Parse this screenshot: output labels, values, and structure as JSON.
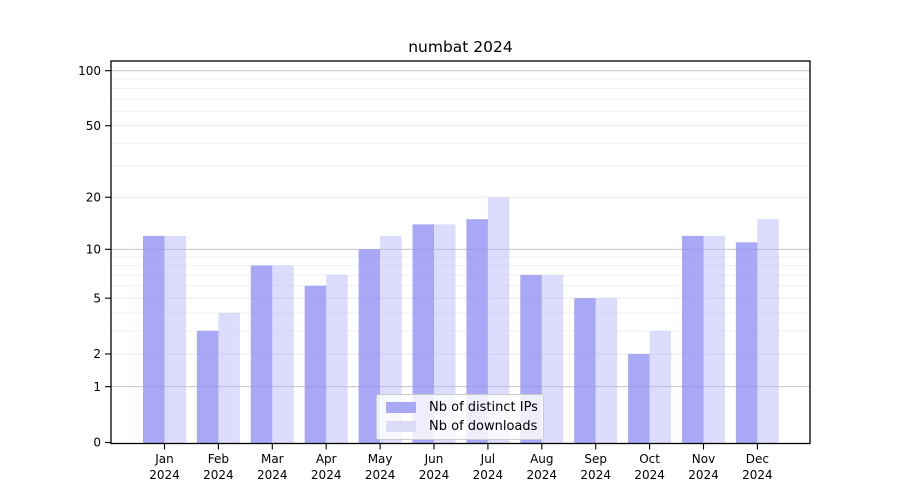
{
  "chart_data": {
    "type": "bar",
    "title": "numbat 2024",
    "categories": [
      "Jan",
      "Feb",
      "Mar",
      "Apr",
      "May",
      "Jun",
      "Jul",
      "Aug",
      "Sep",
      "Oct",
      "Nov",
      "Dec"
    ],
    "x_year_label": "2024",
    "series": [
      {
        "name": "Nb of distinct IPs",
        "values": [
          12,
          3,
          8,
          6,
          10,
          14,
          15,
          7,
          5,
          2,
          12,
          11
        ],
        "bar_color": "rgba(143,143,244,0.78)",
        "legend_color": "#a8a8f4"
      },
      {
        "name": "Nb of downloads",
        "values": [
          12,
          4,
          8,
          7,
          12,
          14,
          20,
          7,
          5,
          3,
          12,
          15
        ],
        "bar_color": "rgba(177,177,250,0.45)",
        "legend_color": "#dcdcf9"
      }
    ],
    "y_axis": {
      "scale": "log1p",
      "tick_labels": [
        0,
        1,
        2,
        5,
        10,
        20,
        50,
        100
      ],
      "ylim": [
        0,
        113
      ],
      "grid_major": [
        1,
        10,
        100
      ],
      "grid_sub": [
        2,
        5,
        20,
        50
      ],
      "grid_minor": [
        3,
        4,
        6,
        7,
        8,
        9,
        30,
        40,
        60,
        70,
        80,
        90
      ]
    },
    "xlabel": "",
    "ylabel": "",
    "grid": true,
    "legend_position": "lower center inside"
  },
  "colors": {
    "grid_major": "#c6c6c6",
    "grid_sub": "#e9e9e9",
    "grid_minor": "#f2f2f2",
    "axis": "#000000",
    "legend_border": "#cccccc",
    "background": "#ffffff"
  }
}
